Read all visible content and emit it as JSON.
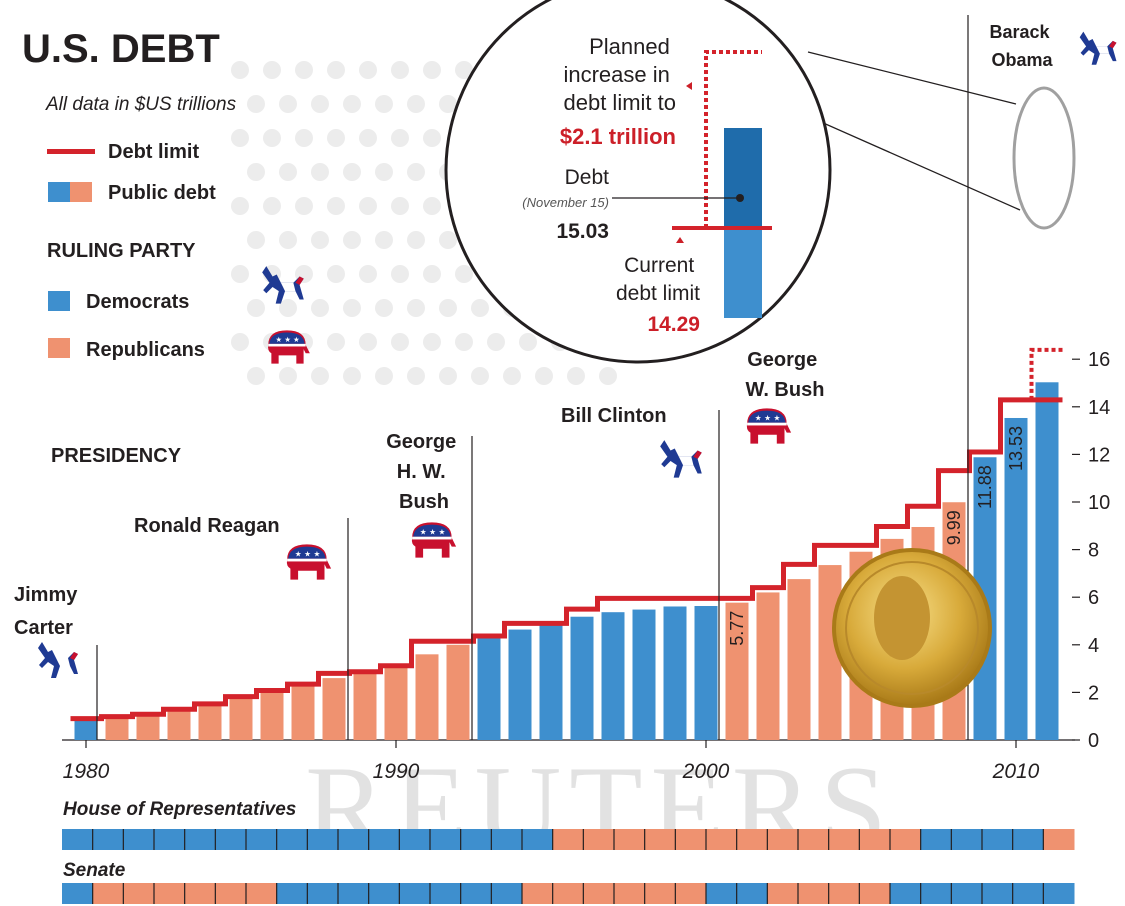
{
  "title": "U.S. DEBT",
  "subtitle": "All data in $US trillions",
  "legend": {
    "debt_limit": "Debt limit",
    "public_debt": "Public debt"
  },
  "party": {
    "heading": "RULING PARTY",
    "dem": "Democrats",
    "rep": "Republicans"
  },
  "presidency_heading": "PRESIDENCY",
  "colors": {
    "dem": "#3e8fce",
    "rep": "#ef9270",
    "limit": "#d4232b",
    "text": "#231f20",
    "red_text": "#cc1f28"
  },
  "presidents": [
    {
      "lines": [
        "Jimmy",
        "Carter"
      ],
      "party": "dem"
    },
    {
      "lines": [
        "Ronald Reagan"
      ],
      "party": "rep"
    },
    {
      "lines": [
        "George",
        "H. W.",
        "Bush"
      ],
      "party": "rep"
    },
    {
      "lines": [
        "Bill Clinton"
      ],
      "party": "dem"
    },
    {
      "lines": [
        "George",
        "W. Bush"
      ],
      "party": "rep"
    },
    {
      "lines": [
        "Barack",
        "Obama"
      ],
      "party": "dem"
    }
  ],
  "inset": {
    "planned": [
      "Planned",
      "increase in",
      "debt limit to"
    ],
    "planned_value": "$2.1 trillion",
    "debt_label": "Debt",
    "debt_date": "(November 15)",
    "debt_value": "15.03",
    "current": [
      "Current",
      "debt limit"
    ],
    "current_value": "14.29"
  },
  "congress": {
    "house": "House of Representatives",
    "senate": "Senate",
    "house_parties": [
      "dem",
      "dem",
      "dem",
      "dem",
      "dem",
      "dem",
      "dem",
      "dem",
      "dem",
      "dem",
      "dem",
      "dem",
      "dem",
      "dem",
      "dem",
      "dem",
      "rep",
      "rep",
      "rep",
      "rep",
      "rep",
      "rep",
      "rep",
      "rep",
      "rep",
      "rep",
      "rep",
      "rep",
      "dem",
      "dem",
      "dem",
      "dem",
      "rep"
    ],
    "senate_parties": [
      "dem",
      "rep",
      "rep",
      "rep",
      "rep",
      "rep",
      "rep",
      "dem",
      "dem",
      "dem",
      "dem",
      "dem",
      "dem",
      "dem",
      "dem",
      "rep",
      "rep",
      "rep",
      "rep",
      "rep",
      "rep",
      "dem",
      "dem",
      "rep",
      "rep",
      "rep",
      "rep",
      "dem",
      "dem",
      "dem",
      "dem",
      "dem",
      "dem"
    ]
  },
  "watermark": "REUTERS",
  "chart_data": {
    "type": "bar",
    "x_ticks": [
      "1980",
      "1990",
      "2000",
      "2010"
    ],
    "y_ticks": [
      "0",
      "2",
      "4",
      "6",
      "8",
      "10",
      "12",
      "14",
      "16"
    ],
    "ylim": [
      0,
      16
    ],
    "categories": [
      "1980",
      "1981",
      "1982",
      "1983",
      "1984",
      "1985",
      "1986",
      "1987",
      "1988",
      "1989",
      "1990",
      "1991",
      "1992",
      "1993",
      "1994",
      "1995",
      "1996",
      "1997",
      "1998",
      "1999",
      "2000",
      "2001",
      "2002",
      "2003",
      "2004",
      "2005",
      "2006",
      "2007",
      "2008",
      "2009",
      "2010",
      "2011"
    ],
    "series": [
      {
        "name": "Public debt",
        "values": [
          0.91,
          1.0,
          1.14,
          1.37,
          1.56,
          1.82,
          2.12,
          2.35,
          2.6,
          2.86,
          3.21,
          3.6,
          4.0,
          4.35,
          4.64,
          4.92,
          5.18,
          5.37,
          5.48,
          5.61,
          5.63,
          5.77,
          6.2,
          6.76,
          7.35,
          7.91,
          8.45,
          8.95,
          9.99,
          11.88,
          13.53,
          15.03
        ],
        "parties": [
          "dem",
          "rep",
          "rep",
          "rep",
          "rep",
          "rep",
          "rep",
          "rep",
          "rep",
          "rep",
          "rep",
          "rep",
          "rep",
          "dem",
          "dem",
          "dem",
          "dem",
          "dem",
          "dem",
          "dem",
          "dem",
          "rep",
          "rep",
          "rep",
          "rep",
          "rep",
          "rep",
          "rep",
          "rep",
          "dem",
          "dem",
          "dem"
        ]
      },
      {
        "name": "Debt limit",
        "values": [
          0.9,
          0.98,
          1.08,
          1.29,
          1.52,
          1.82,
          2.08,
          2.35,
          2.8,
          2.87,
          3.12,
          4.15,
          4.15,
          4.37,
          4.9,
          4.9,
          5.5,
          5.95,
          5.95,
          5.95,
          5.95,
          5.95,
          6.4,
          7.38,
          8.18,
          8.18,
          8.97,
          9.82,
          11.32,
          12.1,
          14.29,
          14.29
        ]
      }
    ],
    "value_labels": [
      {
        "year": "2001",
        "label": "5.77"
      },
      {
        "year": "2008",
        "label": "9.99"
      },
      {
        "year": "2009",
        "label": "11.88"
      },
      {
        "year": "2010",
        "label": "13.53"
      }
    ],
    "planned_limit": 16.39
  }
}
